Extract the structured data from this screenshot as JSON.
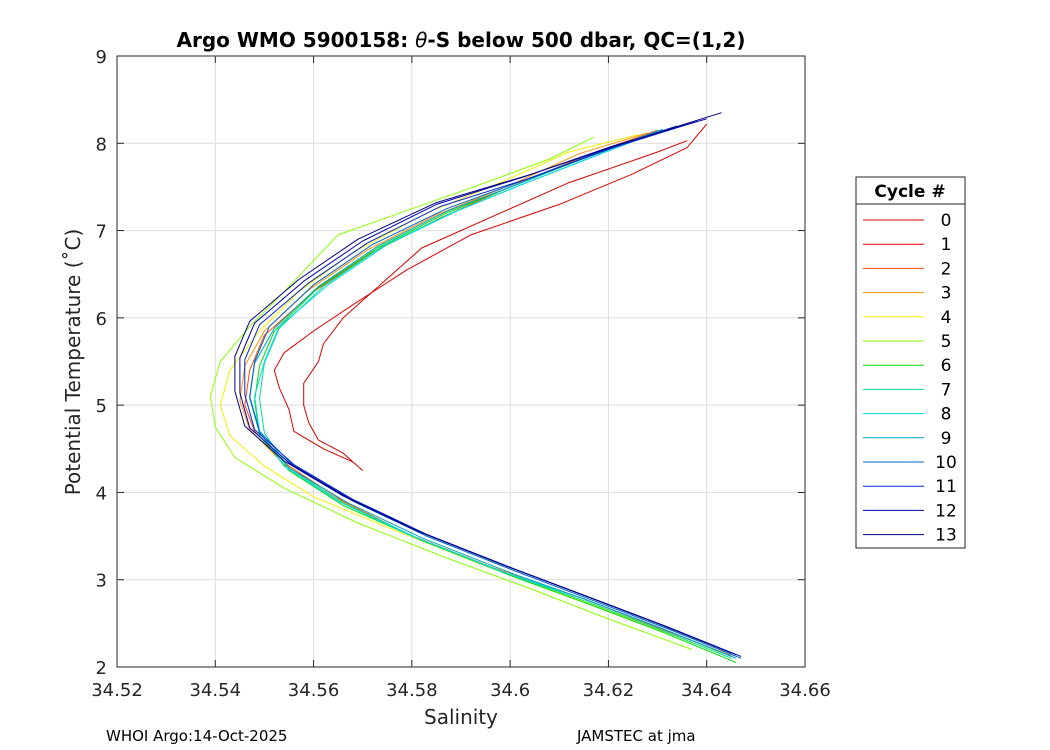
{
  "chart_data": {
    "type": "line",
    "title_prefix": "Argo WMO 5900158: ",
    "title_symbol": "θ",
    "title_suffix": "-S below 500 dbar,  QC=(1,2)",
    "xlabel": "Salinity",
    "ylabel": "Potential Temperature (˚C)",
    "xlim": [
      34.52,
      34.66
    ],
    "ylim": [
      2,
      9
    ],
    "xticks": [
      "34.52",
      "34.54",
      "34.56",
      "34.58",
      "34.6",
      "34.62",
      "34.64",
      "34.66"
    ],
    "yticks": [
      "2",
      "3",
      "4",
      "5",
      "6",
      "7",
      "8",
      "9"
    ],
    "grid": true,
    "legend_title": "Cycle #",
    "legend_position": "right",
    "footer_left": "WHOI Argo:14-Oct-2025",
    "footer_right": "JAMSTEC at jma",
    "series": [
      {
        "name": "0",
        "color": "#d40000",
        "points": [
          [
            34.57,
            4.25
          ],
          [
            34.566,
            4.45
          ],
          [
            34.561,
            4.6
          ],
          [
            34.559,
            4.8
          ],
          [
            34.558,
            5.0
          ],
          [
            34.558,
            5.25
          ],
          [
            34.561,
            5.5
          ],
          [
            34.562,
            5.7
          ],
          [
            34.566,
            6.0
          ],
          [
            34.574,
            6.4
          ],
          [
            34.582,
            6.8
          ],
          [
            34.598,
            7.2
          ],
          [
            34.612,
            7.55
          ],
          [
            34.63,
            7.9
          ],
          [
            34.636,
            8.03
          ]
        ]
      },
      {
        "name": "1",
        "color": "#e00000",
        "points": [
          [
            34.568,
            4.35
          ],
          [
            34.562,
            4.5
          ],
          [
            34.556,
            4.7
          ],
          [
            34.555,
            4.95
          ],
          [
            34.553,
            5.2
          ],
          [
            34.552,
            5.4
          ],
          [
            34.554,
            5.6
          ],
          [
            34.56,
            5.85
          ],
          [
            34.568,
            6.15
          ],
          [
            34.579,
            6.55
          ],
          [
            34.592,
            6.95
          ],
          [
            34.61,
            7.3
          ],
          [
            34.625,
            7.65
          ],
          [
            34.636,
            7.95
          ],
          [
            34.64,
            8.22
          ]
        ]
      },
      {
        "name": "2",
        "color": "#ff4a00",
        "points": [
          [
            34.645,
            2.13
          ],
          [
            34.63,
            2.45
          ],
          [
            34.615,
            2.78
          ],
          [
            34.598,
            3.1
          ],
          [
            34.58,
            3.5
          ],
          [
            34.566,
            3.9
          ],
          [
            34.555,
            4.3
          ],
          [
            34.548,
            4.7
          ],
          [
            34.546,
            5.0
          ],
          [
            34.547,
            5.4
          ],
          [
            34.55,
            5.8
          ],
          [
            34.56,
            6.3
          ],
          [
            34.572,
            6.75
          ],
          [
            34.586,
            7.15
          ],
          [
            34.6,
            7.5
          ],
          [
            34.615,
            7.85
          ],
          [
            34.63,
            8.15
          ]
        ]
      },
      {
        "name": "3",
        "color": "#ff9200",
        "points": [
          [
            34.644,
            2.15
          ],
          [
            34.629,
            2.48
          ],
          [
            34.614,
            2.8
          ],
          [
            34.596,
            3.15
          ],
          [
            34.578,
            3.55
          ],
          [
            34.564,
            3.95
          ],
          [
            34.554,
            4.32
          ],
          [
            34.547,
            4.72
          ],
          [
            34.545,
            5.05
          ],
          [
            34.546,
            5.45
          ],
          [
            34.55,
            5.85
          ],
          [
            34.559,
            6.32
          ],
          [
            34.571,
            6.78
          ],
          [
            34.585,
            7.18
          ],
          [
            34.6,
            7.52
          ],
          [
            34.614,
            7.88
          ],
          [
            34.628,
            8.12
          ]
        ]
      },
      {
        "name": "4",
        "color": "#f2f000",
        "points": [
          [
            34.643,
            2.15
          ],
          [
            34.627,
            2.5
          ],
          [
            34.611,
            2.83
          ],
          [
            34.593,
            3.2
          ],
          [
            34.575,
            3.6
          ],
          [
            34.56,
            3.95
          ],
          [
            34.55,
            4.3
          ],
          [
            34.543,
            4.65
          ],
          [
            34.541,
            5.0
          ],
          [
            34.543,
            5.4
          ],
          [
            34.549,
            5.85
          ],
          [
            34.557,
            6.3
          ],
          [
            34.568,
            6.75
          ],
          [
            34.583,
            7.2
          ],
          [
            34.598,
            7.55
          ],
          [
            34.612,
            7.9
          ],
          [
            34.626,
            8.1
          ]
        ]
      },
      {
        "name": "5",
        "color": "#8cff00",
        "points": [
          [
            34.637,
            2.2
          ],
          [
            34.62,
            2.55
          ],
          [
            34.604,
            2.9
          ],
          [
            34.587,
            3.25
          ],
          [
            34.569,
            3.65
          ],
          [
            34.554,
            4.05
          ],
          [
            34.544,
            4.4
          ],
          [
            34.54,
            4.75
          ],
          [
            34.539,
            5.1
          ],
          [
            34.541,
            5.5
          ],
          [
            34.547,
            5.9
          ],
          [
            34.554,
            6.3
          ],
          [
            34.565,
            6.95
          ],
          [
            34.58,
            7.25
          ],
          [
            34.595,
            7.55
          ],
          [
            34.608,
            7.82
          ],
          [
            34.617,
            8.07
          ]
        ]
      },
      {
        "name": "6",
        "color": "#00e000",
        "points": [
          [
            34.646,
            2.05
          ],
          [
            34.631,
            2.4
          ],
          [
            34.616,
            2.72
          ],
          [
            34.6,
            3.05
          ],
          [
            34.582,
            3.45
          ],
          [
            34.566,
            3.85
          ],
          [
            34.555,
            4.25
          ],
          [
            34.549,
            4.65
          ],
          [
            34.548,
            5.05
          ],
          [
            34.549,
            5.45
          ],
          [
            34.552,
            5.85
          ],
          [
            34.561,
            6.35
          ],
          [
            34.573,
            6.8
          ],
          [
            34.587,
            7.2
          ],
          [
            34.601,
            7.52
          ],
          [
            34.616,
            7.85
          ],
          [
            34.629,
            8.12
          ]
        ]
      },
      {
        "name": "7",
        "color": "#00e098",
        "points": [
          [
            34.645,
            2.1
          ],
          [
            34.63,
            2.44
          ],
          [
            34.615,
            2.76
          ],
          [
            34.599,
            3.08
          ],
          [
            34.581,
            3.48
          ],
          [
            34.566,
            3.88
          ],
          [
            34.555,
            4.28
          ],
          [
            34.55,
            4.68
          ],
          [
            34.549,
            5.08
          ],
          [
            34.55,
            5.48
          ],
          [
            34.553,
            5.88
          ],
          [
            34.562,
            6.36
          ],
          [
            34.574,
            6.82
          ],
          [
            34.588,
            7.2
          ],
          [
            34.602,
            7.52
          ],
          [
            34.617,
            7.85
          ],
          [
            34.63,
            8.14
          ]
        ]
      },
      {
        "name": "8",
        "color": "#00d8ea",
        "points": [
          [
            34.645,
            2.12
          ],
          [
            34.63,
            2.46
          ],
          [
            34.615,
            2.78
          ],
          [
            34.598,
            3.1
          ],
          [
            34.58,
            3.5
          ],
          [
            34.565,
            3.9
          ],
          [
            34.554,
            4.3
          ],
          [
            34.549,
            4.7
          ],
          [
            34.548,
            5.1
          ],
          [
            34.55,
            5.5
          ],
          [
            34.553,
            5.9
          ],
          [
            34.563,
            6.38
          ],
          [
            34.575,
            6.84
          ],
          [
            34.589,
            7.22
          ],
          [
            34.603,
            7.54
          ],
          [
            34.618,
            7.87
          ],
          [
            34.631,
            8.15
          ]
        ]
      },
      {
        "name": "9",
        "color": "#00a0c8",
        "points": [
          [
            34.646,
            2.1
          ],
          [
            34.631,
            2.44
          ],
          [
            34.616,
            2.76
          ],
          [
            34.6,
            3.08
          ],
          [
            34.582,
            3.48
          ],
          [
            34.567,
            3.88
          ],
          [
            34.555,
            4.28
          ],
          [
            34.549,
            4.68
          ],
          [
            34.547,
            5.08
          ],
          [
            34.548,
            5.48
          ],
          [
            34.552,
            5.88
          ],
          [
            34.561,
            6.36
          ],
          [
            34.573,
            6.82
          ],
          [
            34.587,
            7.22
          ],
          [
            34.602,
            7.54
          ],
          [
            34.617,
            7.88
          ],
          [
            34.631,
            8.16
          ]
        ]
      },
      {
        "name": "10",
        "color": "#0064c8",
        "points": [
          [
            34.647,
            2.1
          ],
          [
            34.632,
            2.44
          ],
          [
            34.617,
            2.76
          ],
          [
            34.601,
            3.1
          ],
          [
            34.583,
            3.5
          ],
          [
            34.568,
            3.9
          ],
          [
            34.556,
            4.3
          ],
          [
            34.549,
            4.7
          ],
          [
            34.547,
            5.1
          ],
          [
            34.548,
            5.5
          ],
          [
            34.551,
            5.9
          ],
          [
            34.56,
            6.38
          ],
          [
            34.572,
            6.84
          ],
          [
            34.587,
            7.25
          ],
          [
            34.603,
            7.58
          ],
          [
            34.619,
            7.92
          ],
          [
            34.634,
            8.2
          ]
        ]
      },
      {
        "name": "11",
        "color": "#0028d0",
        "points": [
          [
            34.647,
            2.12
          ],
          [
            34.632,
            2.46
          ],
          [
            34.617,
            2.78
          ],
          [
            34.601,
            3.12
          ],
          [
            34.583,
            3.52
          ],
          [
            34.568,
            3.92
          ],
          [
            34.556,
            4.32
          ],
          [
            34.548,
            4.72
          ],
          [
            34.546,
            5.12
          ],
          [
            34.546,
            5.52
          ],
          [
            34.549,
            5.92
          ],
          [
            34.559,
            6.4
          ],
          [
            34.571,
            6.86
          ],
          [
            34.586,
            7.28
          ],
          [
            34.604,
            7.6
          ],
          [
            34.621,
            7.95
          ],
          [
            34.638,
            8.25
          ]
        ]
      },
      {
        "name": "12",
        "color": "#0000b0",
        "points": [
          [
            34.646,
            2.14
          ],
          [
            34.631,
            2.48
          ],
          [
            34.616,
            2.8
          ],
          [
            34.6,
            3.14
          ],
          [
            34.582,
            3.54
          ],
          [
            34.567,
            3.94
          ],
          [
            34.555,
            4.34
          ],
          [
            34.547,
            4.74
          ],
          [
            34.545,
            5.14
          ],
          [
            34.545,
            5.54
          ],
          [
            34.548,
            5.94
          ],
          [
            34.558,
            6.42
          ],
          [
            34.57,
            6.88
          ],
          [
            34.585,
            7.3
          ],
          [
            34.603,
            7.62
          ],
          [
            34.621,
            7.97
          ],
          [
            34.64,
            8.28
          ]
        ]
      },
      {
        "name": "13",
        "color": "#000080",
        "points": [
          [
            34.645,
            2.16
          ],
          [
            34.63,
            2.5
          ],
          [
            34.615,
            2.82
          ],
          [
            34.599,
            3.16
          ],
          [
            34.581,
            3.56
          ],
          [
            34.566,
            3.96
          ],
          [
            34.554,
            4.36
          ],
          [
            34.546,
            4.76
          ],
          [
            34.544,
            5.16
          ],
          [
            34.544,
            5.56
          ],
          [
            34.547,
            5.96
          ],
          [
            34.557,
            6.44
          ],
          [
            34.569,
            6.9
          ],
          [
            34.585,
            7.32
          ],
          [
            34.604,
            7.64
          ],
          [
            34.623,
            8.0
          ],
          [
            34.643,
            8.35
          ]
        ]
      }
    ]
  }
}
